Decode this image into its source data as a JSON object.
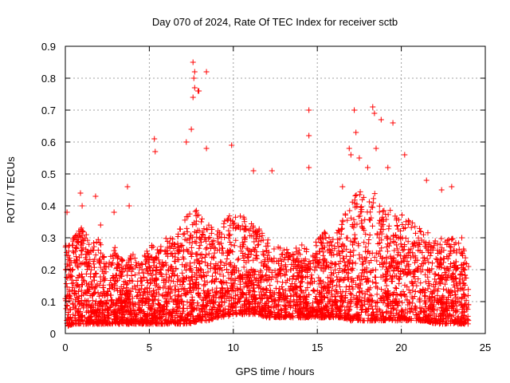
{
  "chart_data": {
    "type": "scatter",
    "title": "Day 070 of 2024, Rate Of TEC Index for receiver sctb",
    "xlabel": "GPS time / hours",
    "ylabel": "ROTI / TECUs",
    "xlim": [
      0,
      25
    ],
    "ylim": [
      0,
      0.9
    ],
    "x_ticks": [
      "0",
      "5",
      "10",
      "15",
      "20",
      "25"
    ],
    "y_ticks": [
      "0",
      "0.1",
      "0.2",
      "0.3",
      "0.4",
      "0.5",
      "0.6",
      "0.7",
      "0.8",
      "0.9"
    ],
    "grid": true,
    "marker": "+",
    "color": "#ff0000",
    "envelope": {
      "x": [
        0,
        0.5,
        1,
        1.5,
        2,
        2.5,
        3,
        3.5,
        4,
        4.5,
        5,
        5.5,
        6,
        6.5,
        7,
        7.5,
        8,
        8.5,
        9,
        9.5,
        10,
        10.5,
        11,
        11.5,
        12,
        12.5,
        13,
        13.5,
        14,
        14.5,
        15,
        15.5,
        16,
        16.5,
        17,
        17.5,
        18,
        18.5,
        19,
        19.5,
        20,
        20.5,
        21,
        21.5,
        22,
        22.5,
        23,
        23.5,
        24
      ],
      "low": [
        0.02,
        0.03,
        0.03,
        0.03,
        0.03,
        0.03,
        0.03,
        0.03,
        0.03,
        0.03,
        0.03,
        0.03,
        0.03,
        0.03,
        0.03,
        0.03,
        0.04,
        0.04,
        0.05,
        0.05,
        0.06,
        0.06,
        0.06,
        0.06,
        0.05,
        0.05,
        0.05,
        0.05,
        0.05,
        0.05,
        0.05,
        0.05,
        0.05,
        0.05,
        0.04,
        0.04,
        0.04,
        0.04,
        0.04,
        0.04,
        0.04,
        0.04,
        0.04,
        0.04,
        0.03,
        0.03,
        0.03,
        0.03,
        0.03
      ],
      "high": [
        0.32,
        0.3,
        0.34,
        0.28,
        0.3,
        0.22,
        0.28,
        0.22,
        0.25,
        0.22,
        0.28,
        0.27,
        0.3,
        0.3,
        0.35,
        0.42,
        0.38,
        0.35,
        0.33,
        0.36,
        0.38,
        0.38,
        0.35,
        0.33,
        0.3,
        0.28,
        0.28,
        0.26,
        0.28,
        0.28,
        0.3,
        0.32,
        0.3,
        0.36,
        0.42,
        0.45,
        0.42,
        0.45,
        0.4,
        0.38,
        0.38,
        0.35,
        0.34,
        0.32,
        0.3,
        0.3,
        0.3,
        0.28,
        0.25
      ]
    },
    "outliers": [
      [
        0.1,
        0.38
      ],
      [
        0.9,
        0.44
      ],
      [
        1.0,
        0.4
      ],
      [
        1.8,
        0.43
      ],
      [
        2.1,
        0.34
      ],
      [
        2.9,
        0.38
      ],
      [
        3.7,
        0.46
      ],
      [
        3.8,
        0.4
      ],
      [
        5.3,
        0.61
      ],
      [
        5.35,
        0.57
      ],
      [
        7.2,
        0.6
      ],
      [
        7.5,
        0.64
      ],
      [
        7.6,
        0.85
      ],
      [
        7.65,
        0.8
      ],
      [
        7.7,
        0.82
      ],
      [
        7.6,
        0.74
      ],
      [
        7.7,
        0.77
      ],
      [
        7.9,
        0.76
      ],
      [
        7.95,
        0.76
      ],
      [
        8.4,
        0.82
      ],
      [
        8.4,
        0.58
      ],
      [
        9.9,
        0.59
      ],
      [
        11.2,
        0.51
      ],
      [
        12.3,
        0.51
      ],
      [
        14.5,
        0.7
      ],
      [
        14.5,
        0.62
      ],
      [
        14.5,
        0.52
      ],
      [
        16.5,
        0.46
      ],
      [
        16.9,
        0.58
      ],
      [
        17.0,
        0.56
      ],
      [
        17.2,
        0.7
      ],
      [
        17.3,
        0.63
      ],
      [
        17.5,
        0.55
      ],
      [
        18.0,
        0.52
      ],
      [
        18.3,
        0.71
      ],
      [
        18.4,
        0.69
      ],
      [
        18.5,
        0.58
      ],
      [
        18.8,
        0.67
      ],
      [
        19.2,
        0.52
      ],
      [
        19.5,
        0.66
      ],
      [
        20.2,
        0.56
      ],
      [
        21.5,
        0.48
      ],
      [
        22.4,
        0.45
      ],
      [
        23.0,
        0.46
      ],
      [
        23.6,
        0.3
      ]
    ]
  }
}
